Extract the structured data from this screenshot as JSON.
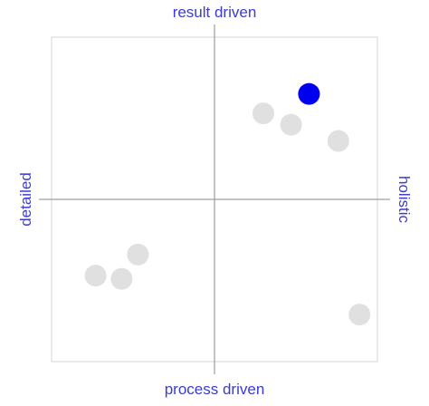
{
  "colors": {
    "label": "#3b3bd4",
    "highlight": "#0000ee",
    "muted_point": "#e0e0e0",
    "frame": "#d6d6d6",
    "axis": "#8a8a8a"
  },
  "chart_data": {
    "type": "scatter",
    "title": "",
    "axes": {
      "top": "result driven",
      "bottom": "process driven",
      "left": "detailed",
      "right": "holistic"
    },
    "xlim": [
      -1,
      1
    ],
    "ylim": [
      -1,
      1
    ],
    "grid": false,
    "points": [
      {
        "x": 0.58,
        "y": 0.65,
        "highlighted": true
      },
      {
        "x": 0.3,
        "y": 0.53,
        "highlighted": false
      },
      {
        "x": 0.47,
        "y": 0.46,
        "highlighted": false
      },
      {
        "x": 0.76,
        "y": 0.36,
        "highlighted": false
      },
      {
        "x": -0.47,
        "y": -0.34,
        "highlighted": false
      },
      {
        "x": -0.73,
        "y": -0.47,
        "highlighted": false
      },
      {
        "x": -0.57,
        "y": -0.49,
        "highlighted": false
      },
      {
        "x": 0.89,
        "y": -0.71,
        "highlighted": false
      }
    ]
  }
}
